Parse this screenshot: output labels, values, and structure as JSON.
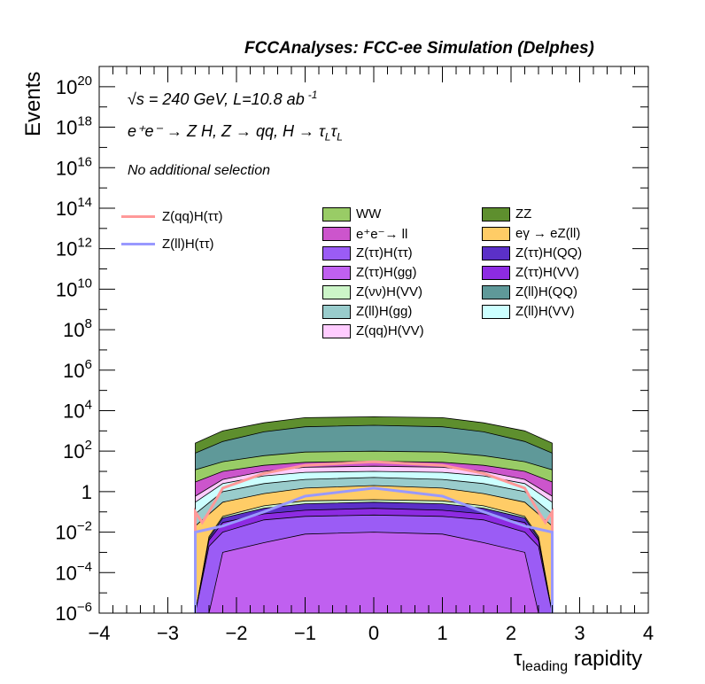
{
  "header": "FCCAnalyses: FCC-ee Simulation (Delphes)",
  "info": {
    "sqrt": "√",
    "energy": "s = 240 GeV, L=10.8 ab",
    "energy_exp": "-1",
    "process": "e⁺e⁻ → Z H, Z → qq, H → τ",
    "process_sub": "L",
    "process_tail": "τ",
    "selection": "No additional selection"
  },
  "chart_data": {
    "type": "stacked-histogram",
    "title": "",
    "xlabel": "τ",
    "xlabel_sub": "leading",
    "xlabel_tail": " rapidity",
    "ylabel": "Events",
    "xlim": [
      -4,
      4
    ],
    "ylim": [
      1e-06,
      1e+21
    ],
    "log_y": true,
    "x_tick_labels": [
      "−4",
      "−3",
      "−2",
      "−1",
      "0",
      "1",
      "2",
      "3",
      "4"
    ],
    "y_tick_labels": [
      {
        "base": "10",
        "exp": "−6",
        "value": 1e-06
      },
      {
        "base": "10",
        "exp": "−4",
        "value": 0.0001
      },
      {
        "base": "10",
        "exp": "−2",
        "value": 0.01
      },
      {
        "base": "1",
        "exp": "",
        "value": 1
      },
      {
        "base": "10",
        "exp": "2",
        "value": 100.0
      },
      {
        "base": "10",
        "exp": "4",
        "value": 10000.0
      },
      {
        "base": "10",
        "exp": "6",
        "value": 1000000.0
      },
      {
        "base": "10",
        "exp": "8",
        "value": 100000000.0
      },
      {
        "base": "10",
        "exp": "10",
        "value": 10000000000.0
      },
      {
        "base": "10",
        "exp": "12",
        "value": 1000000000000.0
      },
      {
        "base": "10",
        "exp": "14",
        "value": 100000000000000.0
      },
      {
        "base": "10",
        "exp": "16",
        "value": 1e+16
      },
      {
        "base": "10",
        "exp": "18",
        "value": 1e+18
      },
      {
        "base": "10",
        "exp": "20",
        "value": 1e+20
      }
    ],
    "stack_bounds": [
      {
        "x": -2.6,
        "v": 1e-06
      },
      {
        "x": -2.6,
        "v": 0.02
      },
      {
        "x": -2.2,
        "v": 0.3
      },
      {
        "x": -1.6,
        "v": 0.8
      },
      {
        "x": -1.0,
        "v": 1.5
      },
      {
        "x": 0.0,
        "v": 2
      },
      {
        "x": 1.0,
        "v": 1.5
      },
      {
        "x": 1.6,
        "v": 0.8
      },
      {
        "x": 2.2,
        "v": 0.3
      },
      {
        "x": 2.6,
        "v": 0.02
      },
      {
        "x": 2.6,
        "v": 1e-06
      }
    ],
    "layers": [
      {
        "name": "Z(ττ)H(gg)",
        "color": "#c060f0",
        "upper": [
          {
            "x": -2.6,
            "v": 1e-06
          },
          {
            "x": -2.4,
            "v": 1e-06
          },
          {
            "x": -2.2,
            "v": 0.001
          },
          {
            "x": -1.6,
            "v": 0.003
          },
          {
            "x": -1.0,
            "v": 0.008
          },
          {
            "x": 0,
            "v": 0.01
          },
          {
            "x": 1.0,
            "v": 0.008
          },
          {
            "x": 1.6,
            "v": 0.003
          },
          {
            "x": 2.2,
            "v": 0.001
          },
          {
            "x": 2.4,
            "v": 1e-06
          },
          {
            "x": 2.6,
            "v": 1e-06
          }
        ]
      },
      {
        "name": "Z(ττ)H(ττ)",
        "color": "#9b5cf5",
        "upper": [
          {
            "x": -2.6,
            "v": 1e-06
          },
          {
            "x": -2.4,
            "v": 0.002
          },
          {
            "x": -2.2,
            "v": 0.01
          },
          {
            "x": -1.6,
            "v": 0.04
          },
          {
            "x": -1.0,
            "v": 0.06
          },
          {
            "x": 0,
            "v": 0.07
          },
          {
            "x": 1.0,
            "v": 0.06
          },
          {
            "x": 1.6,
            "v": 0.04
          },
          {
            "x": 2.2,
            "v": 0.01
          },
          {
            "x": 2.4,
            "v": 0.002
          },
          {
            "x": 2.6,
            "v": 1e-06
          }
        ]
      },
      {
        "name": "Z(ττ)H(VV)",
        "color": "#8d2be2",
        "upper": [
          {
            "x": -2.6,
            "v": 1e-06
          },
          {
            "x": -2.4,
            "v": 0.004
          },
          {
            "x": -2.2,
            "v": 0.03
          },
          {
            "x": -1.6,
            "v": 0.08
          },
          {
            "x": -1.0,
            "v": 0.12
          },
          {
            "x": 0,
            "v": 0.15
          },
          {
            "x": 1.0,
            "v": 0.12
          },
          {
            "x": 1.6,
            "v": 0.08
          },
          {
            "x": 2.2,
            "v": 0.03
          },
          {
            "x": 2.4,
            "v": 0.004
          },
          {
            "x": 2.6,
            "v": 1e-06
          }
        ]
      },
      {
        "name": "Z(ττ)H(QQ)",
        "color": "#5b30c8",
        "upper": [
          {
            "x": -2.6,
            "v": 1e-06
          },
          {
            "x": -2.4,
            "v": 0.005
          },
          {
            "x": -2.2,
            "v": 0.05
          },
          {
            "x": -1.6,
            "v": 0.15
          },
          {
            "x": -1.0,
            "v": 0.25
          },
          {
            "x": 0,
            "v": 0.3
          },
          {
            "x": 1.0,
            "v": 0.25
          },
          {
            "x": 1.6,
            "v": 0.15
          },
          {
            "x": 2.2,
            "v": 0.05
          },
          {
            "x": 2.4,
            "v": 0.005
          },
          {
            "x": 2.6,
            "v": 1e-06
          }
        ]
      },
      {
        "name": "Z(νν)H(VV)",
        "color": "#ccf5c8",
        "upper": [
          {
            "x": -2.6,
            "v": 1e-06
          },
          {
            "x": -2.4,
            "v": 0.006
          },
          {
            "x": -2.2,
            "v": 0.06
          },
          {
            "x": -1.6,
            "v": 0.2
          },
          {
            "x": -1.0,
            "v": 0.35
          },
          {
            "x": 0,
            "v": 0.4
          },
          {
            "x": 1.0,
            "v": 0.35
          },
          {
            "x": 1.6,
            "v": 0.2
          },
          {
            "x": 2.2,
            "v": 0.06
          },
          {
            "x": 2.4,
            "v": 0.006
          },
          {
            "x": 2.6,
            "v": 1e-06
          }
        ]
      },
      {
        "name": "eγ → eZ(ll)",
        "color": "#ffcc66",
        "upper": [
          {
            "x": -2.6,
            "v": 1e-06
          },
          {
            "x": -2.6,
            "v": 0.02
          },
          {
            "x": -2.2,
            "v": 0.3
          },
          {
            "x": -1.6,
            "v": 0.8
          },
          {
            "x": -1.0,
            "v": 1.5
          },
          {
            "x": 0,
            "v": 2
          },
          {
            "x": 1.0,
            "v": 1.5
          },
          {
            "x": 1.6,
            "v": 0.8
          },
          {
            "x": 2.2,
            "v": 0.3
          },
          {
            "x": 2.6,
            "v": 0.02
          },
          {
            "x": 2.6,
            "v": 1e-06
          }
        ]
      },
      {
        "name": "Z(ll)H(gg)",
        "color": "#99cccc",
        "upper": [
          {
            "x": -2.6,
            "v": 0.02
          },
          {
            "x": -2.6,
            "v": 0.08
          },
          {
            "x": -2.2,
            "v": 1
          },
          {
            "x": -1.6,
            "v": 2.5
          },
          {
            "x": -1.0,
            "v": 4
          },
          {
            "x": 0,
            "v": 5
          },
          {
            "x": 1.0,
            "v": 4
          },
          {
            "x": 1.6,
            "v": 2.5
          },
          {
            "x": 2.2,
            "v": 1
          },
          {
            "x": 2.6,
            "v": 0.08
          },
          {
            "x": 2.6,
            "v": 0.02
          }
        ]
      },
      {
        "name": "Z(ll)H(VV)",
        "color": "#ccffff",
        "upper": [
          {
            "x": -2.6,
            "v": 0.08
          },
          {
            "x": -2.6,
            "v": 0.3
          },
          {
            "x": -2.2,
            "v": 2.5
          },
          {
            "x": -1.6,
            "v": 6
          },
          {
            "x": -1.0,
            "v": 9
          },
          {
            "x": 0,
            "v": 10
          },
          {
            "x": 1.0,
            "v": 9
          },
          {
            "x": 1.6,
            "v": 6
          },
          {
            "x": 2.2,
            "v": 2.5
          },
          {
            "x": 2.6,
            "v": 0.3
          },
          {
            "x": 2.6,
            "v": 0.08
          }
        ]
      },
      {
        "name": "Z(qq)H(VV)",
        "color": "#ffccff",
        "upper": [
          {
            "x": -2.6,
            "v": 0.3
          },
          {
            "x": -2.6,
            "v": 0.6
          },
          {
            "x": -2.2,
            "v": 4
          },
          {
            "x": -1.6,
            "v": 10
          },
          {
            "x": -1.0,
            "v": 16
          },
          {
            "x": 0,
            "v": 18
          },
          {
            "x": 1.0,
            "v": 16
          },
          {
            "x": 1.6,
            "v": 10
          },
          {
            "x": 2.2,
            "v": 4
          },
          {
            "x": 2.6,
            "v": 0.6
          },
          {
            "x": 2.6,
            "v": 0.3
          }
        ]
      },
      {
        "name": "e⁺e⁻→ ll",
        "color": "#cc55cc",
        "upper": [
          {
            "x": -2.6,
            "v": 0.6
          },
          {
            "x": -2.6,
            "v": 3
          },
          {
            "x": -2.2,
            "v": 10
          },
          {
            "x": -1.6,
            "v": 20
          },
          {
            "x": -1.0,
            "v": 28
          },
          {
            "x": 0,
            "v": 32
          },
          {
            "x": 1.0,
            "v": 28
          },
          {
            "x": 1.6,
            "v": 20
          },
          {
            "x": 2.2,
            "v": 10
          },
          {
            "x": 2.6,
            "v": 3
          },
          {
            "x": 2.6,
            "v": 0.6
          }
        ]
      },
      {
        "name": "WW",
        "color": "#99cc66",
        "upper": [
          {
            "x": -2.6,
            "v": 3
          },
          {
            "x": -2.6,
            "v": 12
          },
          {
            "x": -2.2,
            "v": 30
          },
          {
            "x": -1.6,
            "v": 60
          },
          {
            "x": -1.0,
            "v": 90
          },
          {
            "x": 0,
            "v": 100
          },
          {
            "x": 1.0,
            "v": 90
          },
          {
            "x": 1.6,
            "v": 60
          },
          {
            "x": 2.2,
            "v": 30
          },
          {
            "x": 2.6,
            "v": 12
          },
          {
            "x": 2.6,
            "v": 3
          }
        ]
      },
      {
        "name": "Z(ll)H(QQ)",
        "color": "#5f9999",
        "upper": [
          {
            "x": -2.6,
            "v": 12
          },
          {
            "x": -2.6,
            "v": 80
          },
          {
            "x": -2.2,
            "v": 300
          },
          {
            "x": -1.6,
            "v": 900
          },
          {
            "x": -1.0,
            "v": 1600
          },
          {
            "x": 0,
            "v": 1900
          },
          {
            "x": 1.0,
            "v": 1600
          },
          {
            "x": 1.6,
            "v": 900
          },
          {
            "x": 2.2,
            "v": 300
          },
          {
            "x": 2.6,
            "v": 80
          },
          {
            "x": 2.6,
            "v": 12
          }
        ]
      },
      {
        "name": "ZZ",
        "color": "#5e8f2e",
        "upper": [
          {
            "x": -2.6,
            "v": 80
          },
          {
            "x": -2.6,
            "v": 250
          },
          {
            "x": -2.2,
            "v": 1000
          },
          {
            "x": -1.6,
            "v": 2500
          },
          {
            "x": -1.0,
            "v": 4500
          },
          {
            "x": 0,
            "v": 5000
          },
          {
            "x": 1.0,
            "v": 4500
          },
          {
            "x": 1.6,
            "v": 2500
          },
          {
            "x": 2.2,
            "v": 1000
          },
          {
            "x": 2.6,
            "v": 250
          },
          {
            "x": 2.6,
            "v": 80
          }
        ]
      }
    ],
    "signals": [
      {
        "name": "Z(qq)H(ττ)",
        "color": "#ff9999",
        "points": [
          {
            "x": -2.6,
            "v": 1e-06
          },
          {
            "x": -2.6,
            "v": 0.1
          },
          {
            "x": -2.5,
            "v": 0.03
          },
          {
            "x": -2.4,
            "v": 0.1
          },
          {
            "x": -2.2,
            "v": 1.5
          },
          {
            "x": -1.6,
            "v": 8
          },
          {
            "x": -1.0,
            "v": 20
          },
          {
            "x": 0,
            "v": 30
          },
          {
            "x": 1.0,
            "v": 20
          },
          {
            "x": 1.6,
            "v": 8
          },
          {
            "x": 2.2,
            "v": 1.5
          },
          {
            "x": 2.4,
            "v": 0.1
          },
          {
            "x": 2.5,
            "v": 0.03
          },
          {
            "x": 2.6,
            "v": 0.1
          },
          {
            "x": 2.6,
            "v": 1e-06
          }
        ]
      },
      {
        "name": "Z(ll)H(ττ)",
        "color": "#9999ff",
        "points": [
          {
            "x": -2.6,
            "v": 1e-06
          },
          {
            "x": -2.6,
            "v": 0.01
          },
          {
            "x": -2.2,
            "v": 0.02
          },
          {
            "x": -1.6,
            "v": 0.1
          },
          {
            "x": -1.0,
            "v": 0.6
          },
          {
            "x": 0,
            "v": 1.5
          },
          {
            "x": 1.0,
            "v": 0.6
          },
          {
            "x": 1.6,
            "v": 0.1
          },
          {
            "x": 2.2,
            "v": 0.02
          },
          {
            "x": 2.6,
            "v": 0.01
          },
          {
            "x": 2.6,
            "v": 1e-06
          }
        ]
      }
    ],
    "legend_stack": [
      "WW",
      "ZZ",
      "e⁺e⁻→ ll",
      "eγ → eZ(ll)",
      "Z(ττ)H(ττ)",
      "Z(ττ)H(QQ)",
      "Z(ττ)H(gg)",
      "Z(ττ)H(VV)",
      "Z(νν)H(VV)",
      "Z(ll)H(QQ)",
      "Z(ll)H(gg)",
      "Z(ll)H(VV)",
      "Z(qq)H(VV)"
    ],
    "legend_signal": [
      "Z(qq)H(ττ)",
      "Z(ll)H(ττ)"
    ],
    "legend_placement": "upper area, inside plot",
    "grid": false
  }
}
